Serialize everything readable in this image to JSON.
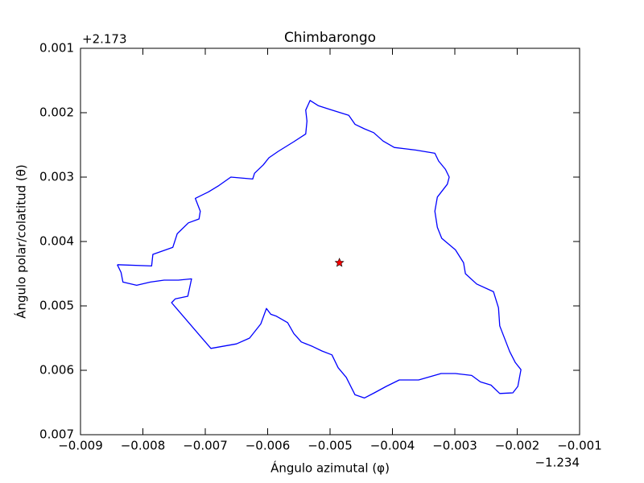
{
  "chart_data": {
    "type": "line",
    "title": "Chimbarongo",
    "xlabel": "Ángulo azimutal (φ)",
    "ylabel": "Ángulo polar/colatitud (θ)",
    "x_offset": "−1.234",
    "y_offset": "+2.173",
    "xlim": [
      -0.009,
      -0.001
    ],
    "ylim": [
      0.007,
      0.001
    ],
    "xticks": [
      {
        "value": -0.009,
        "label": "−0.009"
      },
      {
        "value": -0.008,
        "label": "−0.008"
      },
      {
        "value": -0.007,
        "label": "−0.007"
      },
      {
        "value": -0.006,
        "label": "−0.006"
      },
      {
        "value": -0.005,
        "label": "−0.005"
      },
      {
        "value": -0.004,
        "label": "−0.004"
      },
      {
        "value": -0.003,
        "label": "−0.003"
      },
      {
        "value": -0.002,
        "label": "−0.002"
      },
      {
        "value": -0.001,
        "label": "−0.001"
      }
    ],
    "yticks": [
      0.001,
      0.002,
      0.003,
      0.004,
      0.005,
      0.006,
      0.007
    ],
    "grid": false,
    "series": [
      {
        "color": "#0000ff",
        "marker": "none",
        "x": [
          -0.00841,
          -0.00786,
          -0.00784,
          -0.00752,
          -0.00745,
          -0.00727,
          -0.0071,
          -0.00708,
          -0.00716,
          -0.00695,
          -0.00678,
          -0.00659,
          -0.00624,
          -0.00621,
          -0.00607,
          -0.00598,
          -0.00583,
          -0.00558,
          -0.00539,
          -0.00537,
          -0.00539,
          -0.00532,
          -0.00519,
          -0.005,
          -0.0047,
          -0.0046,
          -0.00445,
          -0.0043,
          -0.00415,
          -0.00397,
          -0.00363,
          -0.00332,
          -0.00326,
          -0.00315,
          -0.00309,
          -0.00312,
          -0.00328,
          -0.00332,
          -0.00328,
          -0.00321,
          -0.00299,
          -0.00286,
          -0.00283,
          -0.00265,
          -0.00238,
          -0.0023,
          -0.00228,
          -0.00212,
          -0.00203,
          -0.00194,
          -0.00199,
          -0.00207,
          -0.00228,
          -0.00242,
          -0.00259,
          -0.00273,
          -0.00299,
          -0.00322,
          -0.0034,
          -0.00358,
          -0.00389,
          -0.0041,
          -0.00429,
          -0.00445,
          -0.0046,
          -0.00474,
          -0.00487,
          -0.00497,
          -0.00513,
          -0.00528,
          -0.00546,
          -0.00558,
          -0.00568,
          -0.00586,
          -0.00595,
          -0.00602,
          -0.00611,
          -0.00629,
          -0.0065,
          -0.00691,
          -0.00754,
          -0.00748,
          -0.00728,
          -0.00722,
          -0.00743,
          -0.00766,
          -0.00788,
          -0.0081,
          -0.00832,
          -0.00835,
          -0.00841
        ],
        "values": [
          0.00436,
          0.00438,
          0.0042,
          0.00409,
          0.00388,
          0.00371,
          0.00365,
          0.00353,
          0.00333,
          0.00323,
          0.00313,
          0.003,
          0.00303,
          0.00294,
          0.00281,
          0.0027,
          0.0026,
          0.00245,
          0.00233,
          0.00213,
          0.00196,
          0.00181,
          0.00189,
          0.00195,
          0.00204,
          0.00218,
          0.00225,
          0.00231,
          0.00244,
          0.00254,
          0.00258,
          0.00263,
          0.00275,
          0.00288,
          0.003,
          0.00311,
          0.00331,
          0.00353,
          0.00378,
          0.00395,
          0.00413,
          0.00433,
          0.0045,
          0.00466,
          0.00478,
          0.00503,
          0.00531,
          0.00571,
          0.00588,
          0.00599,
          0.00625,
          0.00635,
          0.00636,
          0.00623,
          0.00618,
          0.00608,
          0.00605,
          0.00605,
          0.0061,
          0.00615,
          0.00615,
          0.00625,
          0.00635,
          0.00643,
          0.00638,
          0.00611,
          0.00596,
          0.00576,
          0.0057,
          0.00563,
          0.00556,
          0.00543,
          0.00526,
          0.00516,
          0.00513,
          0.00504,
          0.00528,
          0.0055,
          0.00559,
          0.00566,
          0.00495,
          0.00489,
          0.00485,
          0.00458,
          0.0046,
          0.0046,
          0.00463,
          0.00468,
          0.00463,
          0.00448,
          0.00436
        ]
      },
      {
        "color": "#ff0000",
        "marker": "star",
        "x": [
          -0.00485
        ],
        "values": [
          0.00433
        ]
      }
    ]
  }
}
